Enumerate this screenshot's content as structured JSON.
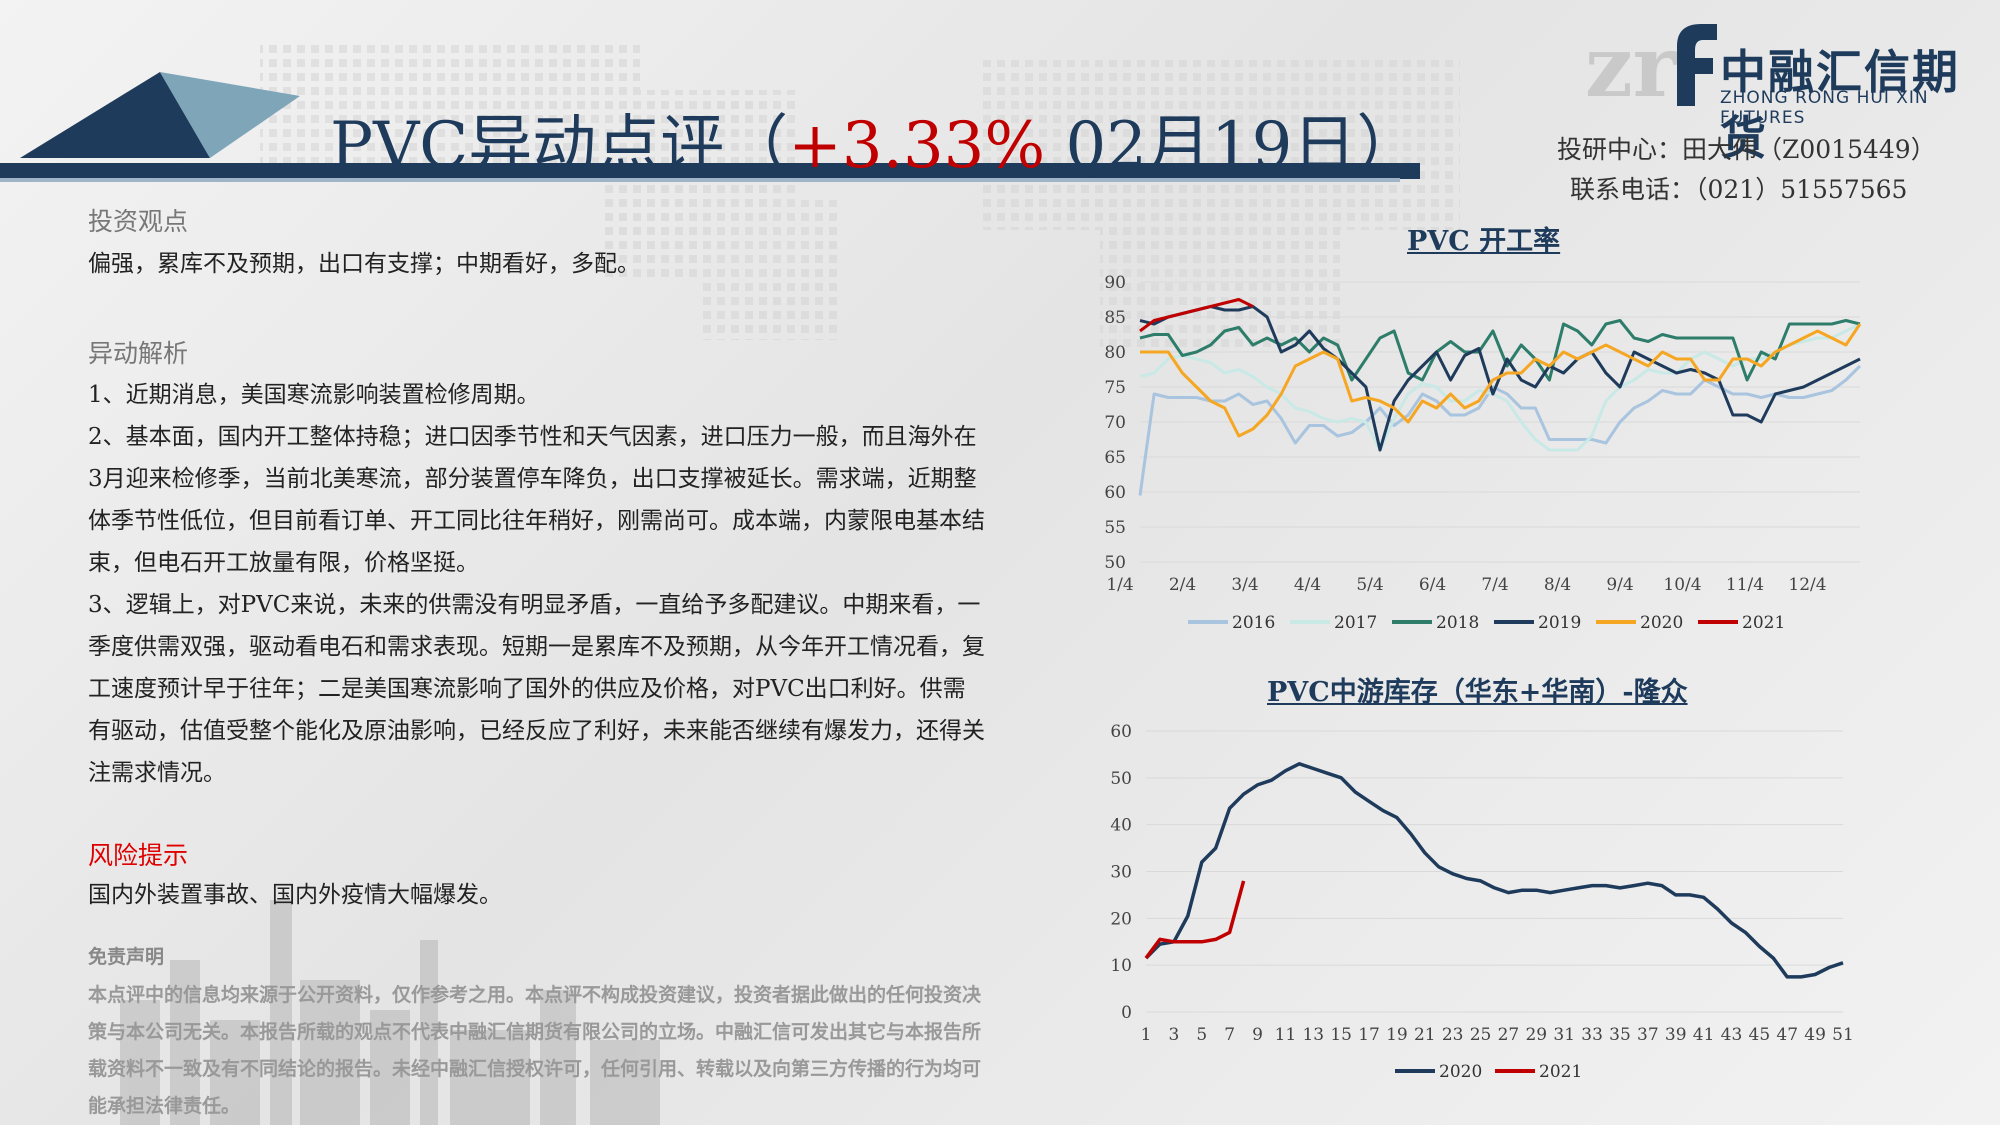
{
  "header": {
    "title": "PVC异动点评",
    "title_paren_open": "（",
    "change": "+3.33%",
    "date": "02月19日",
    "title_paren_close": "）"
  },
  "logo": {
    "name": "中融汇信期货",
    "sub": "ZHONG RONG HUI XIN FUTURES"
  },
  "contact": {
    "analyst": "投研中心：田大伟（Z0015449）",
    "phone": "联系电话：（021）51557565"
  },
  "sections": {
    "view_title": "投资观点",
    "view_text": "偏强，累库不及预期，出口有支撑；中期看好，多配。",
    "analysis_title": "异动解析",
    "analysis": [
      "1、近期消息，美国寒流影响装置检修周期。",
      "2、基本面，国内开工整体持稳；进口因季节性和天气因素，进口压力一般，而且海外在3月迎来检修季，当前北美寒流，部分装置停车降负，出口支撑被延长。需求端，近期整体季节性低位，但目前看订单、开工同比往年稍好，刚需尚可。成本端，内蒙限电基本结束，但电石开工放量有限，价格坚挺。",
      "3、逻辑上，对PVC来说，未来的供需没有明显矛盾，一直给予多配建议。中期来看，一季度供需双强，驱动看电石和需求表现。短期一是累库不及预期，从今年开工情况看，复工速度预计早于往年；二是美国寒流影响了国外的供应及价格，对PVC出口利好。供需有驱动，估值受整个能化及原油影响，已经反应了利好，未来能否继续有爆发力，还得关注需求情况。"
    ],
    "risk_title": "风险提示",
    "risk_text": "国内外装置事故、国内外疫情大幅爆发。",
    "disclaimer_title": "免责声明",
    "disclaimer_text": "本点评中的信息均来源于公开资料，仅作参考之用。本点评不构成投资建议，投资者据此做出的任何投资决策与本公司无关。本报告所载的观点不代表中融汇信期货有限公司的立场。中融汇信可发出其它与本报告所载资料不一致及有不同结论的报告。未经中融汇信授权许可，任何引用、转载以及向第三方传播的行为均可能承担法律责任。"
  },
  "colors": {
    "navy": "#1f3b5c",
    "red": "#c00000",
    "s2016": "#a9c4df",
    "s2017": "#c9e9e6",
    "s2018": "#2e7d6b",
    "s2019": "#1f3b5c",
    "s2020": "#f5a623",
    "s2021": "#c00000"
  },
  "chart_data": [
    {
      "type": "line",
      "title": "PVC 开工率",
      "x_ticks": [
        "1/4",
        "2/4",
        "3/4",
        "4/4",
        "5/4",
        "6/4",
        "7/4",
        "8/4",
        "9/4",
        "10/4",
        "11/4",
        "12/4"
      ],
      "ylim": [
        50,
        90
      ],
      "y_ticks": [
        50,
        55,
        60,
        65,
        70,
        75,
        80,
        85,
        90
      ],
      "grid": true,
      "legend": "bottom",
      "series": [
        {
          "name": "2016",
          "color": "#a9c4df",
          "values": [
            59.5,
            74,
            73.5,
            73.5,
            73.5,
            73,
            73,
            74,
            72.5,
            73,
            70.5,
            67,
            69.5,
            69.5,
            68,
            68.5,
            70,
            72,
            69.5,
            71,
            74,
            73,
            71,
            71,
            72,
            75,
            74,
            72,
            72,
            67.5,
            67.5,
            67.5,
            67.5,
            67,
            70,
            72,
            73,
            74.5,
            74,
            74,
            76,
            75,
            74,
            74,
            73.5,
            74,
            73.5,
            73.5,
            74,
            74.5,
            76,
            78
          ]
        },
        {
          "name": "2017",
          "color": "#c9e9e6",
          "values": [
            76.5,
            77,
            79,
            79.5,
            79,
            78.5,
            77,
            77.5,
            76.5,
            75,
            74,
            72,
            71.5,
            70.5,
            70,
            70.5,
            70,
            66,
            70.5,
            74,
            75.5,
            75,
            73,
            73,
            74.5,
            74,
            73,
            70,
            67.5,
            66,
            66,
            66,
            68,
            73,
            75,
            76,
            77.5,
            77,
            77,
            79,
            80,
            79,
            78,
            79,
            79,
            80,
            81,
            81.5,
            82,
            82,
            83,
            84
          ]
        },
        {
          "name": "2018",
          "color": "#2e7d6b",
          "values": [
            82,
            82.5,
            82.5,
            79.5,
            80,
            81,
            83,
            83.5,
            81,
            82,
            81,
            82,
            80,
            82,
            81,
            76,
            79,
            82,
            83,
            77,
            76,
            80,
            81.5,
            80,
            80,
            83,
            78,
            81,
            79,
            76,
            84,
            83,
            81,
            84,
            84.5,
            82,
            81.5,
            82.5,
            82,
            82,
            82,
            82,
            82,
            76,
            80,
            79,
            84,
            84,
            84,
            84,
            84.5,
            84
          ]
        },
        {
          "name": "2019",
          "color": "#1f3b5c",
          "values": [
            84.5,
            84,
            85,
            85.5,
            86,
            86.5,
            86,
            86,
            86.5,
            85,
            80,
            81,
            83,
            80.5,
            79,
            77,
            75,
            66,
            73,
            76,
            78,
            80,
            76,
            79.5,
            80.5,
            74,
            79,
            76,
            75,
            78,
            77,
            79,
            80,
            77,
            75,
            80,
            79,
            78,
            77,
            77.5,
            77,
            76,
            71,
            71,
            70,
            74,
            74.5,
            75,
            76,
            77,
            78,
            79
          ]
        },
        {
          "name": "2020",
          "color": "#f5a623",
          "values": [
            80,
            80,
            80,
            77,
            75,
            73,
            72,
            68,
            69,
            71,
            74,
            78,
            79,
            80,
            79,
            73,
            73.5,
            73,
            72,
            70,
            73,
            72,
            74,
            72,
            73,
            76,
            77,
            77,
            79,
            78,
            80,
            79,
            80,
            81,
            80,
            79,
            78,
            80,
            79,
            79,
            76,
            76,
            79,
            79,
            78,
            80,
            81,
            82,
            83,
            82,
            81,
            84
          ]
        },
        {
          "name": "2021",
          "color": "#c00000",
          "values": [
            83,
            84.5,
            85,
            85.5,
            86,
            86.5,
            87,
            87.5,
            86.5
          ]
        }
      ]
    },
    {
      "type": "line",
      "title": "PVC中游库存（华东+华南）-隆众",
      "x_ticks": [
        "1",
        "3",
        "5",
        "7",
        "9",
        "11",
        "13",
        "15",
        "17",
        "19",
        "21",
        "23",
        "25",
        "27",
        "29",
        "31",
        "33",
        "35",
        "37",
        "39",
        "41",
        "43",
        "45",
        "47",
        "49",
        "51"
      ],
      "ylim": [
        0,
        60
      ],
      "y_ticks": [
        0,
        10,
        20,
        30,
        40,
        50,
        60
      ],
      "grid": true,
      "legend": "bottom",
      "series": [
        {
          "name": "2020",
          "color": "#1f3b5c",
          "values": [
            11.5,
            14.5,
            15,
            20.5,
            32,
            35,
            43.5,
            46.5,
            48.5,
            49.5,
            51.5,
            53,
            52,
            51,
            50,
            47,
            45,
            43,
            41.5,
            38,
            34,
            31,
            29.5,
            28.5,
            28,
            26.5,
            25.5,
            26,
            26,
            25.5,
            26,
            26.5,
            27,
            27,
            26.5,
            27,
            27.5,
            27,
            25,
            25,
            24.5,
            22,
            19,
            17,
            14,
            11.5,
            7.5,
            7.5,
            8,
            9.5,
            10.5
          ]
        },
        {
          "name": "2021",
          "color": "#c00000",
          "values": [
            11.5,
            15.5,
            15,
            15,
            15,
            15.5,
            17,
            28
          ]
        }
      ]
    }
  ]
}
